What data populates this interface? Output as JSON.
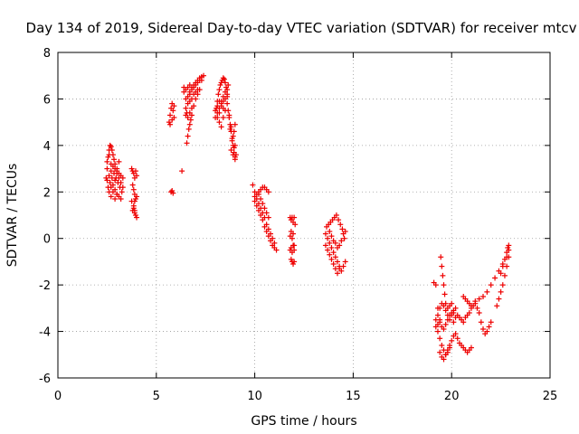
{
  "chart_data": {
    "type": "scatter",
    "title": "Day 134 of 2019, Sidereal Day-to-day VTEC variation (SDTVAR) for receiver mtcv",
    "xlabel": "GPS time / hours",
    "ylabel": "SDTVAR / TECUs",
    "xlim": [
      0,
      25
    ],
    "ylim": [
      -6,
      8
    ],
    "xticks": [
      "0",
      "5",
      "10",
      "15",
      "20",
      "25"
    ],
    "yticks": [
      "-6",
      "-4",
      "-2",
      "0",
      "2",
      "4",
      "6",
      "8"
    ],
    "grid": true,
    "marker": "+",
    "color": "#ee0000",
    "series": [
      {
        "x": [
          2.45,
          2.5,
          2.55,
          2.6,
          2.65,
          2.7,
          2.75,
          2.8,
          2.85,
          2.9,
          3.0,
          3.1,
          3.2,
          3.3,
          2.5,
          2.6,
          2.7,
          2.8,
          2.9,
          3.0,
          3.1,
          3.2,
          3.3,
          2.55,
          2.65,
          2.75,
          2.85,
          2.95,
          3.05,
          3.15,
          3.25,
          2.6,
          2.7,
          2.8,
          2.9,
          3.0,
          3.1,
          3.2,
          2.7,
          2.8,
          2.9,
          3.0,
          2.9,
          3.0,
          3.1,
          2.5,
          2.6,
          2.7
        ],
        "y": [
          2.6,
          3.0,
          3.5,
          3.8,
          4.0,
          3.95,
          3.8,
          3.6,
          3.4,
          3.2,
          3.0,
          2.8,
          2.7,
          2.6,
          2.5,
          2.7,
          2.9,
          3.1,
          3.0,
          2.8,
          2.6,
          2.4,
          2.2,
          2.2,
          2.4,
          2.6,
          2.8,
          2.6,
          2.4,
          2.2,
          2.0,
          2.0,
          2.2,
          2.3,
          2.1,
          1.9,
          1.8,
          1.7,
          1.8,
          2.0,
          1.7,
          1.9,
          2.5,
          2.9,
          3.3,
          3.3,
          3.6,
          3.2
        ]
      },
      {
        "x": [
          3.75,
          3.8,
          3.85,
          3.9,
          3.95,
          4.0,
          3.8,
          3.85,
          3.9,
          3.95,
          3.75,
          3.85,
          3.9,
          4.0,
          3.8,
          3.9,
          3.95,
          3.85,
          3.9,
          4.0
        ],
        "y": [
          3.0,
          2.9,
          2.8,
          2.6,
          2.9,
          2.7,
          2.3,
          2.1,
          1.9,
          1.7,
          1.6,
          1.4,
          1.6,
          1.8,
          1.2,
          1.1,
          1.0,
          1.3,
          1.2,
          0.9
        ]
      },
      {
        "x": [
          5.65,
          5.7,
          5.75,
          5.8,
          5.85,
          5.9,
          5.7,
          5.8,
          5.9,
          5.75,
          5.8,
          5.85,
          6.3,
          6.5,
          6.55
        ],
        "y": [
          5.0,
          5.3,
          5.6,
          5.8,
          5.5,
          5.2,
          4.9,
          5.1,
          5.7,
          2.0,
          2.05,
          1.95,
          2.9,
          5.3,
          5.4
        ]
      },
      {
        "x": [
          6.4,
          6.5,
          6.6,
          6.7,
          6.8,
          6.9,
          7.0,
          7.1,
          7.2,
          7.3,
          7.4,
          6.5,
          6.6,
          6.7,
          6.8,
          6.9,
          7.0,
          7.1,
          7.2,
          7.3,
          6.6,
          6.7,
          6.8,
          6.9,
          7.0,
          7.1,
          6.5,
          6.6,
          6.7,
          6.8,
          6.55,
          6.6,
          6.65,
          6.7,
          6.75,
          6.8,
          6.9,
          7.0,
          7.1,
          7.2,
          6.4,
          6.7
        ],
        "y": [
          6.3,
          6.4,
          6.5,
          6.6,
          6.5,
          6.6,
          6.7,
          6.8,
          6.9,
          6.95,
          7.0,
          6.0,
          6.1,
          6.3,
          6.4,
          6.5,
          6.6,
          6.7,
          6.8,
          6.8,
          5.8,
          5.9,
          6.0,
          6.2,
          6.3,
          6.4,
          5.6,
          5.2,
          5.4,
          5.6,
          4.1,
          4.4,
          4.7,
          4.9,
          5.1,
          5.3,
          5.7,
          6.0,
          6.2,
          6.4,
          6.5,
          6.2
        ]
      },
      {
        "x": [
          8.0,
          8.05,
          8.1,
          8.15,
          8.2,
          8.25,
          8.3,
          8.35,
          8.4,
          8.45,
          8.5,
          8.55,
          8.6,
          8.1,
          8.2,
          8.3,
          8.4,
          8.5,
          8.6,
          8.65,
          8.1,
          8.2,
          8.3,
          8.4,
          8.5,
          8.6,
          8.0,
          8.1,
          8.2,
          8.3,
          8.4,
          8.5,
          8.2,
          8.3,
          8.4
        ],
        "y": [
          5.2,
          5.6,
          5.9,
          6.2,
          6.4,
          6.6,
          6.7,
          6.8,
          6.9,
          6.85,
          6.7,
          6.5,
          6.2,
          5.4,
          5.6,
          5.9,
          6.1,
          6.3,
          6.4,
          6.6,
          5.2,
          5.4,
          5.7,
          5.9,
          6.0,
          6.1,
          5.5,
          5.7,
          5.9,
          5.8,
          5.6,
          5.5,
          5.0,
          4.8,
          5.2
        ]
      },
      {
        "x": [
          8.6,
          8.65,
          8.7,
          8.75,
          8.8,
          8.85,
          8.9,
          8.95,
          9.0,
          8.7,
          8.8,
          8.9,
          9.0,
          8.75,
          8.85,
          8.95,
          9.05,
          8.8,
          8.9,
          9.0,
          8.95,
          9.0
        ],
        "y": [
          5.8,
          5.5,
          5.2,
          4.9,
          4.6,
          4.3,
          4.0,
          3.7,
          3.5,
          5.3,
          4.8,
          4.4,
          4.0,
          4.7,
          4.2,
          3.9,
          3.6,
          3.8,
          3.6,
          3.4,
          4.6,
          4.9
        ]
      },
      {
        "x": [
          9.9,
          10.0,
          10.1,
          10.2,
          10.3,
          10.4,
          10.5,
          10.6,
          10.7,
          10.8,
          10.9,
          11.0,
          11.1,
          10.0,
          10.1,
          10.2,
          10.3,
          10.4,
          10.5,
          10.6,
          10.7,
          10.8,
          10.9,
          11.0,
          10.0,
          10.1,
          10.2,
          10.3,
          10.4,
          10.5,
          10.6,
          10.7,
          10.2,
          10.3,
          10.4,
          10.5,
          10.6,
          10.7
        ],
        "y": [
          2.3,
          2.0,
          1.7,
          1.5,
          1.3,
          1.1,
          0.9,
          0.6,
          0.4,
          0.2,
          0.0,
          -0.2,
          -0.5,
          1.6,
          1.4,
          1.2,
          1.0,
          0.8,
          0.5,
          0.3,
          0.1,
          -0.1,
          -0.3,
          -0.4,
          1.8,
          1.9,
          2.0,
          2.1,
          2.2,
          2.2,
          2.1,
          2.0,
          1.9,
          1.7,
          1.5,
          1.3,
          1.1,
          0.9
        ]
      },
      {
        "x": [
          11.8,
          11.85,
          11.9,
          11.95,
          12.0,
          12.05,
          11.8,
          11.85,
          11.9,
          11.95,
          12.0,
          11.8,
          11.85,
          11.9,
          11.95,
          12.0,
          11.85,
          11.9,
          11.95,
          12.0
        ],
        "y": [
          0.9,
          0.8,
          0.9,
          0.7,
          0.9,
          0.6,
          0.1,
          0.3,
          0.0,
          0.2,
          -0.3,
          -0.5,
          -0.4,
          -0.6,
          -0.3,
          -0.5,
          -0.9,
          -1.0,
          -1.1,
          -1.0
        ]
      },
      {
        "x": [
          13.6,
          13.7,
          13.8,
          13.9,
          14.0,
          14.1,
          14.2,
          14.3,
          14.4,
          14.5,
          14.6,
          13.6,
          13.7,
          13.8,
          13.9,
          14.0,
          14.1,
          14.2,
          14.3,
          13.65,
          13.75,
          13.85,
          13.95,
          14.05,
          14.15,
          14.25,
          14.35,
          14.45,
          14.5,
          14.55,
          14.6,
          14.1,
          14.2,
          14.3,
          14.4,
          13.8,
          13.9,
          14.0
        ],
        "y": [
          0.2,
          0.0,
          -0.2,
          -0.4,
          -0.6,
          -0.8,
          -1.0,
          -1.2,
          -1.4,
          -1.2,
          -1.0,
          -0.3,
          -0.5,
          -0.7,
          -0.9,
          -1.1,
          -1.3,
          -1.5,
          -1.3,
          0.5,
          0.6,
          0.7,
          0.8,
          0.9,
          1.0,
          0.8,
          0.6,
          0.4,
          0.2,
          0.0,
          0.3,
          -0.2,
          -0.4,
          -0.3,
          -0.1,
          0.3,
          0.1,
          -0.1
        ]
      },
      {
        "x": [
          19.2,
          19.3,
          19.4,
          19.5,
          19.6,
          19.7,
          19.8,
          19.9,
          20.0,
          20.1,
          20.2,
          19.4,
          19.5,
          19.6,
          19.7,
          19.8,
          19.9,
          19.3,
          19.4,
          19.5,
          19.6,
          19.7,
          19.8,
          19.9,
          20.0,
          20.1,
          19.1,
          19.2,
          19.3,
          19.4,
          19.5,
          19.6,
          19.7,
          19.8,
          19.9,
          20.0,
          20.1,
          20.2,
          20.3,
          20.4,
          20.5,
          20.6,
          20.7,
          20.8,
          20.9,
          21.0,
          19.2,
          19.3,
          19.4,
          19.45,
          19.5,
          19.55,
          19.6,
          19.65,
          19.7,
          19.8,
          19.9,
          20.0,
          20.1,
          20.2,
          20.3,
          20.4,
          20.5,
          20.6,
          20.7,
          20.8,
          20.9,
          21.0,
          21.1,
          21.2,
          21.3,
          21.4,
          21.5,
          21.6,
          21.7,
          21.8,
          21.9,
          22.0,
          20.6,
          20.7,
          20.8,
          20.9,
          21.0,
          21.2,
          21.4,
          21.6,
          21.8,
          22.0,
          22.2,
          22.4,
          22.6,
          22.8,
          22.9,
          22.3,
          22.4,
          22.5,
          22.6,
          22.7,
          22.8,
          22.9,
          22.5,
          22.6,
          22.7,
          22.8,
          22.85,
          22.9
        ],
        "y": [
          -3.5,
          -3.3,
          -3.0,
          -2.8,
          -2.9,
          -3.1,
          -3.3,
          -3.5,
          -3.3,
          -3.1,
          -3.0,
          -4.9,
          -5.1,
          -5.2,
          -5.0,
          -4.8,
          -4.6,
          -4.0,
          -4.3,
          -4.6,
          -4.8,
          -5.0,
          -4.9,
          -4.7,
          -4.4,
          -4.2,
          -1.9,
          -2.0,
          -3.0,
          -3.5,
          -3.8,
          -3.9,
          -3.7,
          -3.5,
          -3.3,
          -3.2,
          -3.6,
          -4.1,
          -4.3,
          -4.5,
          -4.6,
          -4.7,
          -4.8,
          -4.9,
          -4.8,
          -4.7,
          -3.8,
          -3.7,
          -3.6,
          -0.8,
          -1.2,
          -1.6,
          -2.0,
          -2.4,
          -2.8,
          -3.0,
          -2.9,
          -2.8,
          -3.2,
          -3.4,
          -3.3,
          -3.4,
          -3.5,
          -3.6,
          -3.4,
          -3.3,
          -3.2,
          -3.0,
          -2.9,
          -2.8,
          -3.0,
          -3.2,
          -3.6,
          -3.9,
          -4.1,
          -4.0,
          -3.8,
          -3.6,
          -2.5,
          -2.6,
          -2.7,
          -2.8,
          -2.9,
          -2.7,
          -2.6,
          -2.5,
          -2.3,
          -2.0,
          -1.7,
          -1.4,
          -1.1,
          -0.8,
          -0.5,
          -2.9,
          -2.6,
          -2.3,
          -2.0,
          -1.6,
          -1.2,
          -0.8,
          -1.5,
          -1.2,
          -0.9,
          -0.6,
          -0.4,
          -0.3
        ]
      }
    ]
  }
}
